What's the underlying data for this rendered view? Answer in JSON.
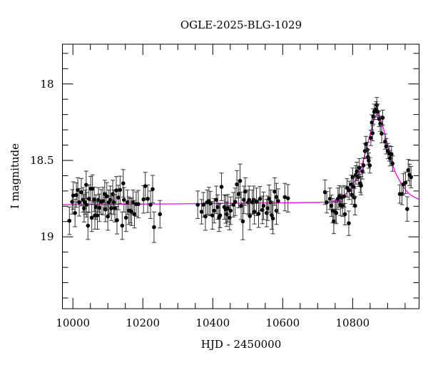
{
  "chart_data": {
    "type": "scatter",
    "title": "OGLE-2025-BLG-1029",
    "xlabel": "HJD - 2450000",
    "ylabel": "I magnitude",
    "xlim": [
      9970,
      10990
    ],
    "ylim": [
      19.47,
      17.74
    ],
    "y_inverted": true,
    "grid": false,
    "x_ticks": [
      10000,
      10200,
      10400,
      10600,
      10800
    ],
    "x_tick_labels": [
      "10000",
      "10200",
      "10400",
      "10600",
      "10800"
    ],
    "x_minor_step": 50,
    "y_ticks": [
      18,
      18.5,
      19
    ],
    "y_tick_labels": [
      "18",
      "18.5",
      "19"
    ],
    "y_minor_step": 0.1,
    "colors": {
      "points": "#000000",
      "errorbars": "#333333",
      "model": "#ff00ff"
    },
    "points_columns": [
      "hjd",
      "mag",
      "err"
    ],
    "points": [
      [
        9990,
        18.895,
        0.09
      ],
      [
        9998,
        18.771,
        0.08
      ],
      [
        10001,
        18.73,
        0.09
      ],
      [
        10006,
        18.844,
        0.09
      ],
      [
        10010,
        18.727,
        0.08
      ],
      [
        10014,
        18.693,
        0.08
      ],
      [
        10018,
        18.774,
        0.09
      ],
      [
        10024,
        18.708,
        0.09
      ],
      [
        10029,
        18.758,
        0.08
      ],
      [
        10032,
        18.813,
        0.09
      ],
      [
        10035,
        18.774,
        0.08
      ],
      [
        10038,
        18.66,
        0.09
      ],
      [
        10039,
        18.79,
        0.08
      ],
      [
        10043,
        18.927,
        0.09
      ],
      [
        10046,
        18.751,
        0.09
      ],
      [
        10051,
        18.685,
        0.08
      ],
      [
        10054,
        18.875,
        0.09
      ],
      [
        10056,
        18.685,
        0.09
      ],
      [
        10061,
        18.755,
        0.08
      ],
      [
        10063,
        18.86,
        0.09
      ],
      [
        10066,
        18.805,
        0.08
      ],
      [
        10070,
        18.86,
        0.09
      ],
      [
        10073,
        18.758,
        0.08
      ],
      [
        10076,
        18.81,
        0.09
      ],
      [
        10081,
        18.771,
        0.08
      ],
      [
        10086,
        18.766,
        0.09
      ],
      [
        10091,
        18.72,
        0.09
      ],
      [
        10093,
        18.821,
        0.08
      ],
      [
        10097,
        18.735,
        0.09
      ],
      [
        10100,
        18.867,
        0.09
      ],
      [
        10103,
        18.774,
        0.08
      ],
      [
        10107,
        18.758,
        0.09
      ],
      [
        10110,
        18.813,
        0.08
      ],
      [
        10114,
        18.72,
        0.09
      ],
      [
        10117,
        18.774,
        0.08
      ],
      [
        10120,
        18.813,
        0.09
      ],
      [
        10124,
        18.696,
        0.09
      ],
      [
        10126,
        18.891,
        0.09
      ],
      [
        10130,
        18.743,
        0.08
      ],
      [
        10135,
        18.693,
        0.09
      ],
      [
        10141,
        18.927,
        0.09
      ],
      [
        10144,
        18.65,
        0.09
      ],
      [
        10146,
        18.758,
        0.08
      ],
      [
        10152,
        18.875,
        0.09
      ],
      [
        10156,
        18.774,
        0.08
      ],
      [
        10160,
        18.829,
        0.09
      ],
      [
        10164,
        18.829,
        0.08
      ],
      [
        10168,
        18.836,
        0.09
      ],
      [
        10172,
        18.774,
        0.08
      ],
      [
        10176,
        18.852,
        0.09
      ],
      [
        10181,
        18.786,
        0.08
      ],
      [
        10187,
        18.786,
        0.09
      ],
      [
        10202,
        18.755,
        0.09
      ],
      [
        10207,
        18.668,
        0.09
      ],
      [
        10214,
        18.751,
        0.09
      ],
      [
        10222,
        18.79,
        0.09
      ],
      [
        10228,
        18.688,
        0.09
      ],
      [
        10232,
        18.937,
        0.1
      ],
      [
        10249,
        18.852,
        0.09
      ],
      [
        10357,
        18.79,
        0.09
      ],
      [
        10368,
        18.836,
        0.08
      ],
      [
        10373,
        18.79,
        0.08
      ],
      [
        10379,
        18.867,
        0.09
      ],
      [
        10384,
        18.774,
        0.08
      ],
      [
        10389,
        18.766,
        0.09
      ],
      [
        10393,
        18.782,
        0.08
      ],
      [
        10399,
        18.86,
        0.09
      ],
      [
        10404,
        18.829,
        0.08
      ],
      [
        10410,
        18.758,
        0.09
      ],
      [
        10414,
        18.805,
        0.08
      ],
      [
        10418,
        18.875,
        0.09
      ],
      [
        10421,
        18.86,
        0.08
      ],
      [
        10425,
        18.673,
        0.09
      ],
      [
        10433,
        18.805,
        0.08
      ],
      [
        10437,
        18.821,
        0.09
      ],
      [
        10440,
        18.852,
        0.08
      ],
      [
        10443,
        18.813,
        0.09
      ],
      [
        10448,
        18.875,
        0.08
      ],
      [
        10451,
        18.829,
        0.09
      ],
      [
        10459,
        18.79,
        0.08
      ],
      [
        10464,
        18.771,
        0.09
      ],
      [
        10469,
        18.657,
        0.09
      ],
      [
        10474,
        18.72,
        0.09
      ],
      [
        10478,
        18.634,
        0.11
      ],
      [
        10481,
        18.797,
        0.09
      ],
      [
        10486,
        18.899,
        0.12
      ],
      [
        10489,
        18.758,
        0.09
      ],
      [
        10493,
        18.704,
        0.09
      ],
      [
        10501,
        18.774,
        0.08
      ],
      [
        10504,
        18.758,
        0.09
      ],
      [
        10506,
        18.864,
        0.09
      ],
      [
        10513,
        18.774,
        0.08
      ],
      [
        10517,
        18.758,
        0.09
      ],
      [
        10519,
        18.836,
        0.08
      ],
      [
        10525,
        18.771,
        0.09
      ],
      [
        10531,
        18.849,
        0.09
      ],
      [
        10535,
        18.751,
        0.08
      ],
      [
        10542,
        18.824,
        0.09
      ],
      [
        10545,
        18.797,
        0.09
      ],
      [
        10554,
        18.844,
        0.09
      ],
      [
        10557,
        18.813,
        0.08
      ],
      [
        10561,
        18.751,
        0.09
      ],
      [
        10566,
        18.774,
        0.08
      ],
      [
        10569,
        18.86,
        0.09
      ],
      [
        10572,
        18.88,
        0.1
      ],
      [
        10577,
        18.704,
        0.09
      ],
      [
        10582,
        18.829,
        0.09
      ],
      [
        10582,
        18.74,
        0.09
      ],
      [
        10587,
        18.766,
        0.08
      ],
      [
        10606,
        18.74,
        0.09
      ],
      [
        10615,
        18.748,
        0.09
      ],
      [
        10721,
        18.708,
        0.08
      ],
      [
        10726,
        18.774,
        0.07
      ],
      [
        10735,
        18.751,
        0.07
      ],
      [
        10739,
        18.797,
        0.07
      ],
      [
        10743,
        18.829,
        0.08
      ],
      [
        10746,
        18.899,
        0.08
      ],
      [
        10750,
        18.836,
        0.07
      ],
      [
        10753,
        18.844,
        0.07
      ],
      [
        10758,
        18.751,
        0.07
      ],
      [
        10762,
        18.735,
        0.07
      ],
      [
        10765,
        18.79,
        0.07
      ],
      [
        10769,
        18.743,
        0.07
      ],
      [
        10771,
        18.797,
        0.07
      ],
      [
        10776,
        18.735,
        0.07
      ],
      [
        10778,
        18.852,
        0.07
      ],
      [
        10784,
        18.68,
        0.06
      ],
      [
        10789,
        18.911,
        0.08
      ],
      [
        10790,
        18.696,
        0.06
      ],
      [
        10796,
        18.657,
        0.06
      ],
      [
        10798,
        18.727,
        0.06
      ],
      [
        10800,
        18.61,
        0.06
      ],
      [
        10803,
        18.673,
        0.06
      ],
      [
        10805,
        18.743,
        0.06
      ],
      [
        10807,
        18.797,
        0.06
      ],
      [
        10809,
        18.595,
        0.06
      ],
      [
        10812,
        18.572,
        0.06
      ],
      [
        10816,
        18.61,
        0.06
      ],
      [
        10819,
        18.548,
        0.06
      ],
      [
        10822,
        18.65,
        0.06
      ],
      [
        10824,
        18.665,
        0.06
      ],
      [
        10828,
        18.572,
        0.05
      ],
      [
        10831,
        18.533,
        0.05
      ],
      [
        10835,
        18.439,
        0.05
      ],
      [
        10838,
        18.393,
        0.05
      ],
      [
        10842,
        18.431,
        0.05
      ],
      [
        10844,
        18.478,
        0.05
      ],
      [
        10846,
        18.501,
        0.05
      ],
      [
        10849,
        18.533,
        0.05
      ],
      [
        10852,
        18.353,
        0.05
      ],
      [
        10855,
        18.252,
        0.05
      ],
      [
        10857,
        18.322,
        0.05
      ],
      [
        10859,
        18.213,
        0.05
      ],
      [
        10862,
        18.182,
        0.05
      ],
      [
        10867,
        18.166,
        0.05
      ],
      [
        10869,
        18.138,
        0.05
      ],
      [
        10872,
        18.182,
        0.05
      ],
      [
        10876,
        18.229,
        0.05
      ],
      [
        10879,
        18.26,
        0.05
      ],
      [
        10883,
        18.325,
        0.06
      ],
      [
        10886,
        18.221,
        0.05
      ],
      [
        10893,
        18.377,
        0.05
      ],
      [
        10896,
        18.408,
        0.05
      ],
      [
        10901,
        18.439,
        0.05
      ],
      [
        10905,
        18.455,
        0.05
      ],
      [
        10907,
        18.486,
        0.05
      ],
      [
        10911,
        18.459,
        0.05
      ],
      [
        10914,
        18.521,
        0.05
      ],
      [
        10935,
        18.72,
        0.06
      ],
      [
        10941,
        18.72,
        0.07
      ],
      [
        10945,
        18.657,
        0.07
      ],
      [
        10951,
        18.646,
        0.07
      ],
      [
        10956,
        18.818,
        0.08
      ],
      [
        10959,
        18.564,
        0.07
      ],
      [
        10963,
        18.595,
        0.07
      ],
      [
        10967,
        18.61,
        0.07
      ]
    ],
    "model_curve": [
      [
        9970,
        18.79
      ],
      [
        10700,
        18.775
      ],
      [
        10750,
        18.757
      ],
      [
        10780,
        18.719
      ],
      [
        10800,
        18.659
      ],
      [
        10820,
        18.578
      ],
      [
        10835,
        18.462
      ],
      [
        10850,
        18.327
      ],
      [
        10860,
        18.244
      ],
      [
        10866,
        18.212
      ],
      [
        10871,
        18.2
      ],
      [
        10876,
        18.212
      ],
      [
        10882,
        18.244
      ],
      [
        10892,
        18.327
      ],
      [
        10907,
        18.462
      ],
      [
        10922,
        18.578
      ],
      [
        10942,
        18.659
      ],
      [
        10962,
        18.719
      ],
      [
        10990,
        18.755
      ]
    ]
  }
}
